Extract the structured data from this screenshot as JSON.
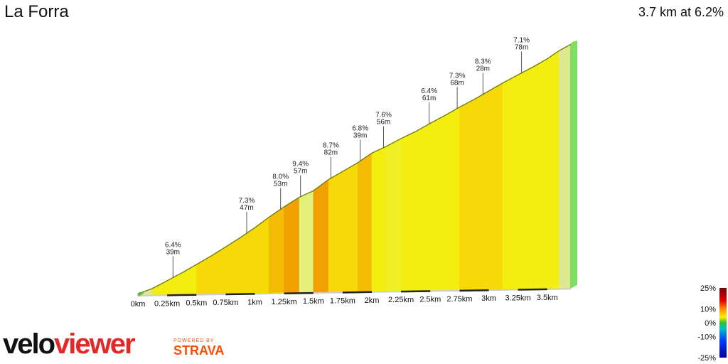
{
  "header": {
    "title": "La Forra",
    "summary": "3.7 km at 6.2%"
  },
  "branding": {
    "logo_part1": "velo",
    "logo_part2": "viewer",
    "powered_by": "POWERED BY",
    "strava": "STRAVA"
  },
  "chart_data": {
    "type": "area",
    "title": "La Forra",
    "xlabel": "",
    "ylabel": "",
    "distance_km": 3.7,
    "avg_gradient_pct": 6.2,
    "x_ticks": [
      "0km",
      "0.25km",
      "0.5km",
      "0.75km",
      "1km",
      "1.25km",
      "1.5km",
      "1.75km",
      "2km",
      "2.25km",
      "2.5km",
      "2.75km",
      "3km",
      "3.25km",
      "3.5km"
    ],
    "x_tick_values_km": [
      0,
      0.25,
      0.5,
      0.75,
      1,
      1.25,
      1.5,
      1.75,
      2,
      2.25,
      2.5,
      2.75,
      3,
      3.25,
      3.5
    ],
    "profile_x_km": [
      0,
      0.12,
      0.25,
      0.38,
      0.5,
      0.63,
      0.75,
      0.88,
      1.0,
      1.12,
      1.25,
      1.38,
      1.5,
      1.63,
      1.75,
      1.88,
      2.0,
      2.12,
      2.25,
      2.38,
      2.5,
      2.63,
      2.75,
      2.88,
      3.0,
      3.12,
      3.25,
      3.38,
      3.5,
      3.6,
      3.7
    ],
    "profile_elev_m": [
      0,
      6,
      16,
      26,
      36,
      47,
      58,
      70,
      82,
      95,
      108,
      120,
      128,
      142,
      152,
      163,
      175,
      183,
      193,
      202,
      212,
      222,
      232,
      242,
      252,
      262,
      272,
      282,
      292,
      302,
      310
    ],
    "segment_gradient_pct": [
      3.5,
      6.5,
      6.5,
      7.0,
      7.5,
      7.5,
      8.0,
      8.0,
      8.0,
      8.5,
      9.5,
      5.0,
      9.0,
      8.0,
      7.5,
      8.5,
      6.5,
      6.0,
      6.5,
      6.5,
      6.5,
      7.0,
      8.3,
      7.5,
      7.5,
      7.0,
      7.0,
      7.0,
      6.5,
      3.0
    ],
    "annotations": [
      {
        "grade": "6.4%",
        "length": "39m",
        "km": 0.3
      },
      {
        "grade": "7.3%",
        "length": "47m",
        "km": 0.93
      },
      {
        "grade": "8.0%",
        "length": "53m",
        "km": 1.22
      },
      {
        "grade": "9.4%",
        "length": "57m",
        "km": 1.39
      },
      {
        "grade": "8.7%",
        "length": "82m",
        "km": 1.65
      },
      {
        "grade": "6.8%",
        "length": "39m",
        "km": 1.9
      },
      {
        "grade": "7.6%",
        "length": "56m",
        "km": 2.1
      },
      {
        "grade": "6.4%",
        "length": "61m",
        "km": 2.49
      },
      {
        "grade": "7.3%",
        "length": "68m",
        "km": 2.73
      },
      {
        "grade": "8.3%",
        "length": "28m",
        "km": 2.95
      },
      {
        "grade": "7.1%",
        "length": "78m",
        "km": 3.28
      }
    ],
    "legend": {
      "labels": [
        "25%",
        "10%",
        "0%",
        "-10%",
        "-25%"
      ],
      "values": [
        25,
        10,
        0,
        -10,
        -25
      ]
    },
    "grid": false
  }
}
